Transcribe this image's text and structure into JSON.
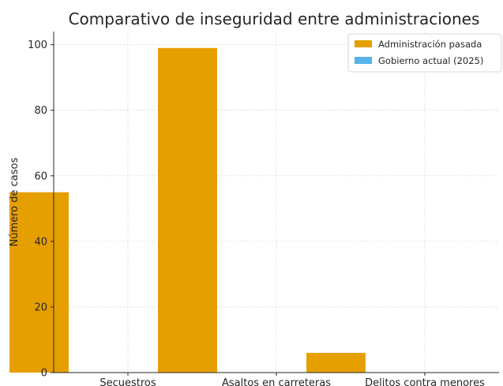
{
  "chart_data": {
    "type": "bar",
    "title": "Comparativo de inseguridad entre administraciones",
    "xlabel": "",
    "ylabel": "Número de casos",
    "categories": [
      "Secuestros",
      "Asaltos en carreteras",
      "Delitos contra menores"
    ],
    "series": [
      {
        "name": "Administración pasada",
        "values": [
          55,
          99,
          6
        ],
        "color": "#E69F00"
      },
      {
        "name": "Gobierno actual (2025)",
        "values": [
          null,
          null,
          null
        ],
        "color": "#56B4E9"
      }
    ],
    "ylim": [
      0,
      104
    ],
    "yticks": [
      0,
      20,
      40,
      60,
      80,
      100
    ],
    "grid": true,
    "legend_position": "top-right"
  }
}
